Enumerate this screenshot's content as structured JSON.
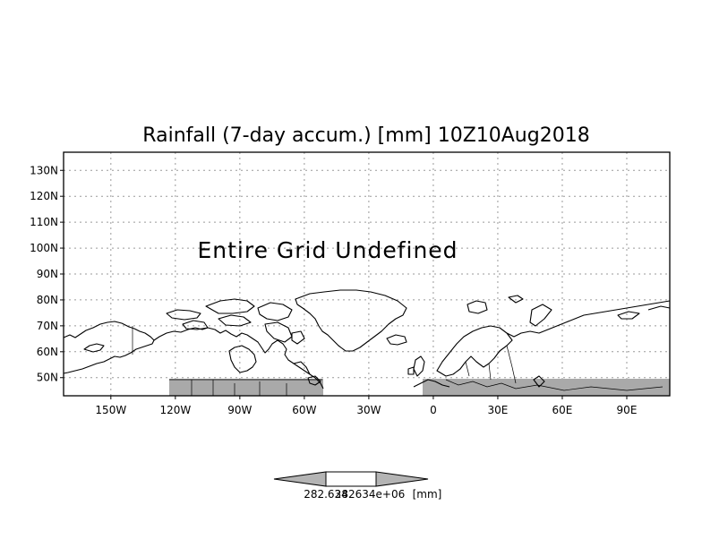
{
  "title": "Rainfall (7-day accum.) [mm] 10Z10Aug2018",
  "overlay_message": "Entire Grid Undefined",
  "map": {
    "lon_range": [
      -172,
      110
    ],
    "lat_range": [
      43,
      137
    ],
    "lat_ticks": [
      {
        "value": 130,
        "label": "130N"
      },
      {
        "value": 120,
        "label": "120N"
      },
      {
        "value": 110,
        "label": "110N"
      },
      {
        "value": 100,
        "label": "100N"
      },
      {
        "value": 90,
        "label": "90N"
      },
      {
        "value": 80,
        "label": "80N"
      },
      {
        "value": 70,
        "label": "70N"
      },
      {
        "value": 60,
        "label": "60N"
      },
      {
        "value": 50,
        "label": "50N"
      }
    ],
    "lon_ticks": [
      {
        "value": -150,
        "label": "150W"
      },
      {
        "value": -120,
        "label": "120W"
      },
      {
        "value": -90,
        "label": "90W"
      },
      {
        "value": -60,
        "label": "60W"
      },
      {
        "value": -30,
        "label": "30W"
      },
      {
        "value": 0,
        "label": "0"
      },
      {
        "value": 30,
        "label": "30E"
      },
      {
        "value": 60,
        "label": "60E"
      },
      {
        "value": 90,
        "label": "90E"
      }
    ],
    "masked_color": "#a9a9a9"
  },
  "colorbar": {
    "label_value": "282.634",
    "label_value_2": "282634e+06",
    "label_unit": "[mm]",
    "fill_color": "#b4b4b4"
  }
}
